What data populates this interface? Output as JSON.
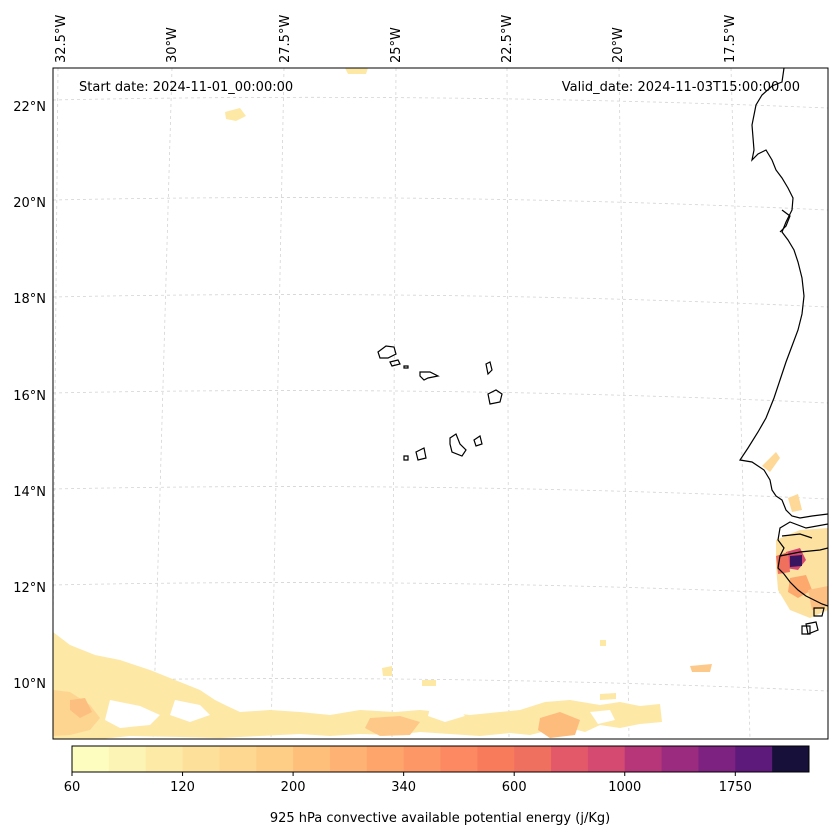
{
  "annotations": {
    "start_date": "Start date: 2024-11-01_00:00:00",
    "valid_date": "Valid_date: 2024-11-03T15:00:00.00"
  },
  "longitude_labels": [
    "32.5°W",
    "30°W",
    "27.5°W",
    "25°W",
    "22.5°W",
    "20°W",
    "17.5°W"
  ],
  "latitude_labels": [
    "22°N",
    "20°N",
    "18°N",
    "16°N",
    "14°N",
    "12°N",
    "10°N"
  ],
  "colorbar": {
    "label": "925 hPa convective available potential energy (j/Kg)",
    "ticks": [
      "60",
      "120",
      "200",
      "340",
      "600",
      "1000",
      "1750"
    ],
    "colors": [
      "#fcfdbf",
      "#fcf4b4",
      "#fdeaa7",
      "#fde19b",
      "#fed890",
      "#fecd86",
      "#febf7b",
      "#feb273",
      "#fea56c",
      "#fd9766",
      "#fc8961",
      "#f87c5c",
      "#f07060",
      "#e3596a",
      "#d44a71",
      "#b63679",
      "#9a2b7e",
      "#7e2281",
      "#5e1a7b",
      "#17103a"
    ]
  },
  "legend_colors": {
    "cape_low": "#fcfdbf",
    "cape_mid": "#fed890",
    "cape_high": "#fd9766",
    "cape_max": "#17103a",
    "coastline": "#000000",
    "gridline": "#cccccc"
  }
}
